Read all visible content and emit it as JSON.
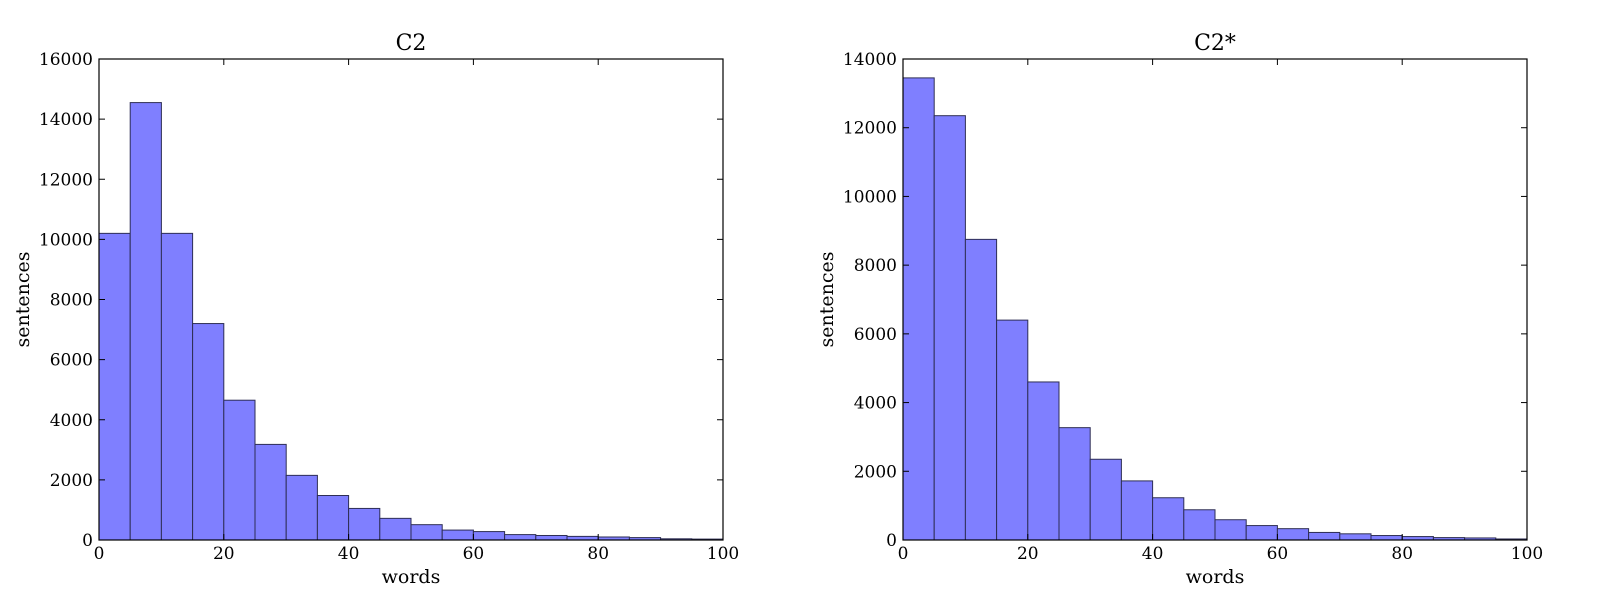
{
  "chart_data": [
    {
      "type": "bar",
      "title": "C2",
      "xlabel": "words",
      "ylabel": "sentences",
      "bin_edges": [
        0,
        5,
        10,
        15,
        20,
        25,
        30,
        35,
        40,
        45,
        50,
        55,
        60,
        65,
        70,
        75,
        80,
        85,
        90,
        95,
        100
      ],
      "values": [
        10200,
        14550,
        10200,
        7200,
        4650,
        3180,
        2150,
        1480,
        1050,
        720,
        510,
        330,
        280,
        180,
        150,
        120,
        100,
        80,
        40,
        30
      ],
      "xlim": [
        0,
        100
      ],
      "ylim": [
        0,
        16000
      ],
      "xticks": [
        0,
        20,
        40,
        60,
        80,
        100
      ],
      "yticks": [
        0,
        2000,
        4000,
        6000,
        8000,
        10000,
        12000,
        14000,
        16000
      ],
      "grid": false,
      "color": "#7f7fff"
    },
    {
      "type": "bar",
      "title": "C2*",
      "xlabel": "words",
      "ylabel": "sentences",
      "bin_edges": [
        0,
        5,
        10,
        15,
        20,
        25,
        30,
        35,
        40,
        45,
        50,
        55,
        60,
        65,
        70,
        75,
        80,
        85,
        90,
        95,
        100
      ],
      "values": [
        13450,
        12350,
        8750,
        6400,
        4600,
        3270,
        2350,
        1720,
        1230,
        880,
        590,
        420,
        330,
        220,
        180,
        130,
        100,
        70,
        60,
        30
      ],
      "xlim": [
        0,
        100
      ],
      "ylim": [
        0,
        14000
      ],
      "xticks": [
        0,
        20,
        40,
        60,
        80,
        100
      ],
      "yticks": [
        0,
        2000,
        4000,
        6000,
        8000,
        10000,
        12000,
        14000
      ],
      "grid": false,
      "color": "#7f7fff"
    }
  ]
}
